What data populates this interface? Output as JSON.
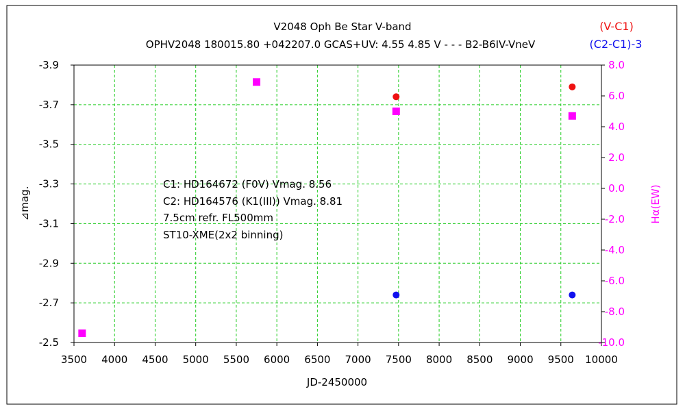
{
  "chart_data": {
    "type": "scatter",
    "title": "V2048 Oph    Be Star    V-band",
    "subtitle": "OPHV2048 180015.80 +042207.0 GCAS+UV: 4.55 4.85 V - - - B2-B6IV-VneV",
    "xlabel": "JD-2450000",
    "ylabel_left": "⊿mag.",
    "ylabel_right": "Hα(EW)",
    "xlim": [
      3500,
      10000
    ],
    "ylim_left_top": -3.9,
    "ylim_left_bottom": -2.5,
    "ylim_right": [
      -10.0,
      8.0
    ],
    "x_ticks": [
      "3500",
      "4000",
      "4500",
      "5000",
      "5500",
      "6000",
      "6500",
      "7000",
      "7500",
      "8000",
      "8500",
      "9000",
      "9500",
      "10000"
    ],
    "y_left_ticks": [
      "-3.9",
      "-3.7",
      "-3.5",
      "-3.3",
      "-3.1",
      "-2.9",
      "-2.7",
      "-2.5"
    ],
    "y_right_ticks": [
      "8.0",
      "6.0",
      "4.0",
      "2.0",
      "0.0",
      "-2.0",
      "-4.0",
      "-6.0",
      "-8.0",
      "-10.0"
    ],
    "grid": true,
    "legend_position": "top-right",
    "series": [
      {
        "name": "(V-C1)",
        "axis": "left",
        "color": "#ee1111",
        "marker": "circle",
        "points": [
          [
            7470,
            -3.74
          ],
          [
            9640,
            -3.79
          ]
        ]
      },
      {
        "name": "(C2-C1)-3",
        "axis": "left",
        "color": "#1111ee",
        "marker": "circle",
        "points": [
          [
            7470,
            -2.74
          ],
          [
            9640,
            -2.74
          ]
        ]
      },
      {
        "name": "",
        "axis": "right",
        "color": "#ff00ff",
        "marker": "square",
        "points": [
          [
            3600,
            -9.4
          ],
          [
            5750,
            6.9
          ],
          [
            7470,
            5.0
          ],
          [
            9640,
            4.7
          ]
        ]
      }
    ],
    "annotations": [
      "C1: HD164672 (F0V)  Vmag. 8.56",
      "C2: HD164576 (K1(III))  Vmag. 8.81",
      "7.5cm refr. FL500mm",
      "ST10-XME(2x2 binning)"
    ]
  }
}
